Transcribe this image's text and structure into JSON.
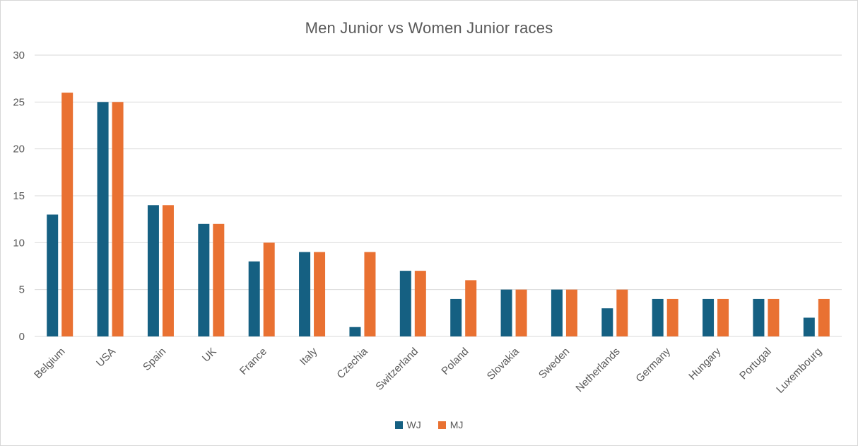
{
  "chart_data": {
    "type": "bar",
    "title": "Men Junior vs Women Junior races",
    "categories": [
      "Belgium",
      "USA",
      "Spain",
      "UK",
      "France",
      "Italy",
      "Czechia",
      "Switzerland",
      "Poland",
      "Slovakia",
      "Sweden",
      "Netherlands",
      "Germany",
      "Hungary",
      "Portugal",
      "Luxembourg"
    ],
    "series": [
      {
        "name": "WJ",
        "color": "#156082",
        "values": [
          13,
          25,
          14,
          12,
          8,
          9,
          1,
          7,
          4,
          5,
          5,
          3,
          4,
          4,
          4,
          2
        ]
      },
      {
        "name": "MJ",
        "color": "#E97132",
        "values": [
          26,
          25,
          14,
          12,
          10,
          9,
          9,
          7,
          6,
          5,
          5,
          5,
          4,
          4,
          4,
          4
        ]
      }
    ],
    "ylim": [
      0,
      30
    ],
    "ytick_step": 5,
    "yticks": [
      0,
      5,
      10,
      15,
      20,
      25,
      30
    ],
    "grid": true,
    "legend_position": "bottom",
    "xlabel": "",
    "ylabel": ""
  },
  "colors": {
    "background": "#FFFFFF",
    "border": "#D6D6D6",
    "gridline": "#D9D9D9",
    "text": "#595959",
    "series_wj": "#156082",
    "series_mj": "#E97132"
  }
}
